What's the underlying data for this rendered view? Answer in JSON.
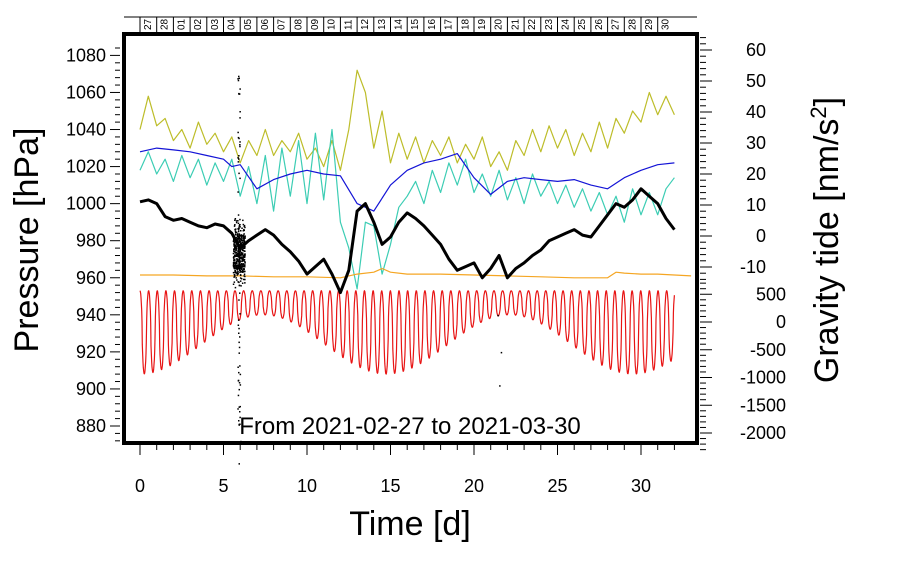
{
  "chart_data": {
    "type": "line",
    "title": "",
    "annotation": "From 2021-02-27 to 2021-03-30",
    "xlabel": "Time [d]",
    "ylabel_left": "Pressure [hPa]",
    "ylabel_right_base": "Gravity tide [nm/s",
    "ylabel_right_sup": "2",
    "ylabel_right_tail": "]",
    "xlim": [
      -1,
      33
    ],
    "ylim_left": [
      868,
      1090
    ],
    "x_ticks": [
      "0",
      "5",
      "10",
      "15",
      "20",
      "25",
      "30"
    ],
    "y_ticks_left": [
      "880",
      "900",
      "920",
      "940",
      "960",
      "980",
      "1000",
      "1020",
      "1040",
      "1060",
      "1080"
    ],
    "y_ticks_right_upper": [
      "60",
      "50",
      "40",
      "30",
      "20",
      "10",
      "0",
      "-10"
    ],
    "y_ticks_right_lower": [
      "500",
      "0",
      "-500",
      "-1000",
      "-1500",
      "-2000"
    ],
    "day_labels": [
      "27",
      "28",
      "01",
      "02",
      "03",
      "04",
      "05",
      "06",
      "07",
      "08",
      "09",
      "10",
      "11",
      "12",
      "13",
      "14",
      "15",
      "16",
      "17",
      "18",
      "19",
      "20",
      "21",
      "22",
      "23",
      "24",
      "25",
      "26",
      "27",
      "28",
      "29",
      "30"
    ],
    "colors": {
      "pressure": "#000000",
      "blue": "#1414d6",
      "olive": "#bdbd2a",
      "cyan": "#3ccdb4",
      "orange": "#f5a623",
      "red": "#e81414"
    },
    "series": [
      {
        "name": "pressure",
        "color": "#000000",
        "x": [
          0,
          0.5,
          1,
          1.5,
          2,
          2.5,
          3,
          3.5,
          4,
          4.5,
          5,
          5.5,
          6,
          6.5,
          7,
          7.5,
          8,
          8.5,
          9,
          9.5,
          10,
          10.5,
          11,
          11.5,
          12,
          12.5,
          13,
          13.5,
          14,
          14.5,
          15,
          15.5,
          16,
          16.5,
          17,
          17.5,
          18,
          18.5,
          19,
          19.5,
          20,
          20.5,
          21,
          21.5,
          22,
          22.5,
          23,
          23.5,
          24,
          24.5,
          25,
          25.5,
          26,
          26.5,
          27,
          27.5,
          28,
          28.5,
          29,
          29.5,
          30,
          30.5,
          31,
          31.5,
          32
        ],
        "values": [
          1001,
          1002,
          1000,
          993,
          991,
          992,
          990,
          988,
          987,
          989,
          988,
          984,
          976,
          980,
          983,
          986,
          983,
          978,
          974,
          969,
          962,
          966,
          970,
          962,
          952,
          964,
          996,
          1000,
          990,
          978,
          982,
          990,
          995,
          992,
          988,
          983,
          978,
          970,
          964,
          966,
          968,
          960,
          965,
          972,
          960,
          965,
          968,
          972,
          975,
          980,
          982,
          984,
          986,
          983,
          982,
          988,
          994,
          1000,
          998,
          1002,
          1008,
          1004,
          1000,
          992,
          986
        ]
      },
      {
        "name": "blue",
        "color": "#1414d6",
        "x": [
          0,
          1,
          2,
          3,
          4,
          5,
          5.5,
          6,
          7,
          8,
          9,
          10,
          11,
          12,
          13,
          14,
          15,
          16,
          17,
          18,
          19,
          20,
          21,
          22,
          23,
          24,
          25,
          26,
          27,
          28,
          29,
          30,
          31,
          32
        ],
        "values": [
          1028,
          1030,
          1029,
          1028,
          1026,
          1024,
          1020,
          1021,
          1008,
          1013,
          1016,
          1018,
          1016,
          1015,
          1000,
          996,
          1010,
          1018,
          1022,
          1024,
          1027,
          1014,
          1005,
          1012,
          1014,
          1013,
          1012,
          1013,
          1010,
          1008,
          1014,
          1018,
          1021,
          1022
        ]
      },
      {
        "name": "olive",
        "color": "#bdbd2a",
        "x": [
          0,
          0.5,
          1,
          1.5,
          2,
          2.5,
          3,
          3.5,
          4,
          4.5,
          5,
          5.5,
          6,
          6.5,
          7,
          7.5,
          8,
          8.5,
          9,
          9.5,
          10,
          10.5,
          11,
          11.5,
          12,
          12.5,
          13,
          13.5,
          14,
          14.5,
          15,
          15.5,
          16,
          16.5,
          17,
          17.5,
          18,
          18.5,
          19,
          19.5,
          20,
          20.5,
          21,
          21.5,
          22,
          22.5,
          23,
          23.5,
          24,
          24.5,
          25,
          25.5,
          26,
          26.5,
          27,
          27.5,
          28,
          28.5,
          29,
          29.5,
          30,
          30.5,
          31,
          31.5,
          32
        ],
        "values": [
          1040,
          1058,
          1042,
          1046,
          1034,
          1040,
          1030,
          1044,
          1032,
          1038,
          1028,
          1036,
          1022,
          1034,
          1026,
          1040,
          1026,
          1034,
          1028,
          1038,
          1024,
          1030,
          1020,
          1034,
          1018,
          1040,
          1072,
          1060,
          1030,
          1050,
          1022,
          1038,
          1024,
          1036,
          1022,
          1034,
          1026,
          1036,
          1022,
          1032,
          1024,
          1036,
          1020,
          1028,
          1018,
          1034,
          1026,
          1040,
          1028,
          1042,
          1030,
          1040,
          1026,
          1038,
          1028,
          1044,
          1030,
          1046,
          1038,
          1050,
          1044,
          1060,
          1048,
          1058,
          1048
        ]
      },
      {
        "name": "cyan",
        "color": "#3ccdb4",
        "x": [
          0,
          0.5,
          1,
          1.5,
          2,
          2.5,
          3,
          3.5,
          4,
          4.5,
          5,
          5.5,
          6,
          6.5,
          7,
          7.5,
          8,
          8.5,
          9,
          9.5,
          10,
          10.5,
          11,
          11.5,
          12,
          12.5,
          13,
          13.5,
          14,
          14.5,
          15,
          15.5,
          16,
          16.5,
          17,
          17.5,
          18,
          18.5,
          19,
          19.5,
          20,
          20.5,
          21,
          21.5,
          22,
          22.5,
          23,
          23.5,
          24,
          24.5,
          25,
          25.5,
          26,
          26.5,
          27,
          27.5,
          28,
          28.5,
          29,
          29.5,
          30,
          30.5,
          31,
          31.5,
          32
        ],
        "values": [
          1018,
          1028,
          1016,
          1024,
          1012,
          1026,
          1014,
          1024,
          1010,
          1022,
          1012,
          1024,
          1004,
          1020,
          1000,
          1026,
          996,
          1030,
          1004,
          1034,
          1000,
          1038,
          1002,
          1040,
          990,
          976,
          954,
          990,
          988,
          962,
          978,
          998,
          1004,
          1012,
          1000,
          1018,
          1006,
          1022,
          1010,
          1024,
          1006,
          1016,
          1004,
          1018,
          1002,
          1014,
          1000,
          1016,
          1004,
          1012,
          1000,
          1010,
          998,
          1008,
          996,
          1006,
          994,
          1004,
          990,
          1008,
          994,
          1006,
          994,
          1008,
          1014
        ]
      },
      {
        "name": "orange",
        "color": "#f5a623",
        "x": [
          0,
          2,
          4,
          6,
          8,
          10,
          12,
          12.5,
          13,
          14,
          14.5,
          15,
          16,
          17,
          18,
          20,
          22,
          24,
          26,
          28,
          28.5,
          29,
          30,
          31,
          32,
          33
        ],
        "values": [
          961.5,
          961.5,
          961,
          961,
          960.5,
          960.5,
          960,
          961,
          962,
          963,
          965,
          963,
          962,
          962,
          962,
          961.5,
          961,
          960.5,
          960,
          960,
          963,
          962.5,
          962,
          962,
          961.5,
          961
        ]
      },
      {
        "name": "red",
        "color": "#e81414",
        "period": 0.517,
        "upper": 953,
        "lower_min": 908,
        "lower_max": 940,
        "x_start": 0,
        "x_end": 32
      }
    ],
    "scatter": {
      "name": "pressure-scatter",
      "color": "#000000",
      "x_center": 5.9,
      "x_spread": 0.35,
      "y_center": 975,
      "y_spread": 22,
      "outliers": [
        [
          5.9,
          1068
        ],
        [
          5.95,
          1050
        ],
        [
          5.85,
          1036
        ],
        [
          5.9,
          900
        ],
        [
          5.95,
          885
        ],
        [
          6.0,
          872
        ],
        [
          21.5,
          902
        ],
        [
          5.9,
          860
        ],
        [
          21.4,
          940
        ],
        [
          21.6,
          920
        ]
      ]
    }
  }
}
